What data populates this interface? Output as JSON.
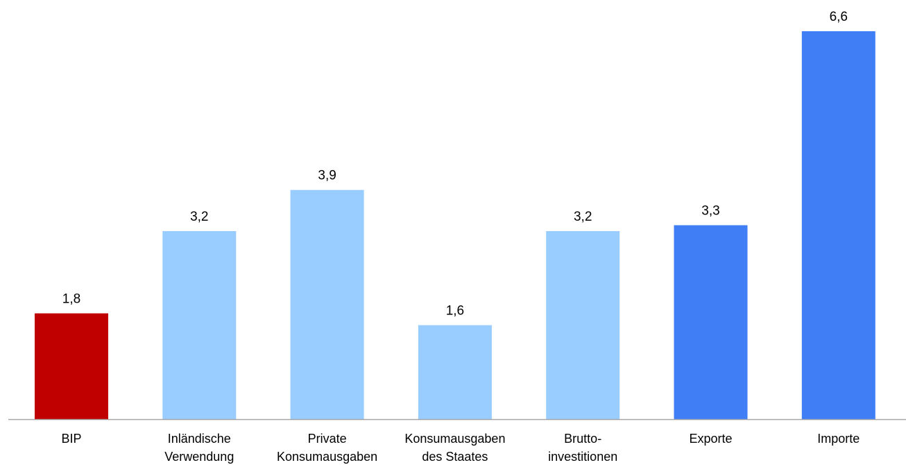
{
  "chart_data": {
    "type": "bar",
    "title": "",
    "xlabel": "",
    "ylabel": "",
    "ylim": [
      0,
      6.6
    ],
    "grid": false,
    "legend": "none",
    "categories": [
      [
        "BIP"
      ],
      [
        "Inländische",
        "Verwendung"
      ],
      [
        "Private",
        "Konsumausgaben"
      ],
      [
        "Konsumausgaben",
        "des Staates"
      ],
      [
        "Brutto-",
        "investitionen"
      ],
      [
        "Exporte"
      ],
      [
        "Importe"
      ]
    ],
    "values": [
      1.8,
      3.2,
      3.9,
      1.6,
      3.2,
      3.3,
      6.6
    ],
    "value_labels": [
      "1,8",
      "3,2",
      "3,9",
      "1,6",
      "3,2",
      "3,3",
      "6,6"
    ],
    "colors": [
      "#c00000",
      "#99ccff",
      "#99ccff",
      "#99ccff",
      "#99ccff",
      "#3f7ef5",
      "#3f7ef5"
    ],
    "axis_color": "#a6a6a6"
  }
}
